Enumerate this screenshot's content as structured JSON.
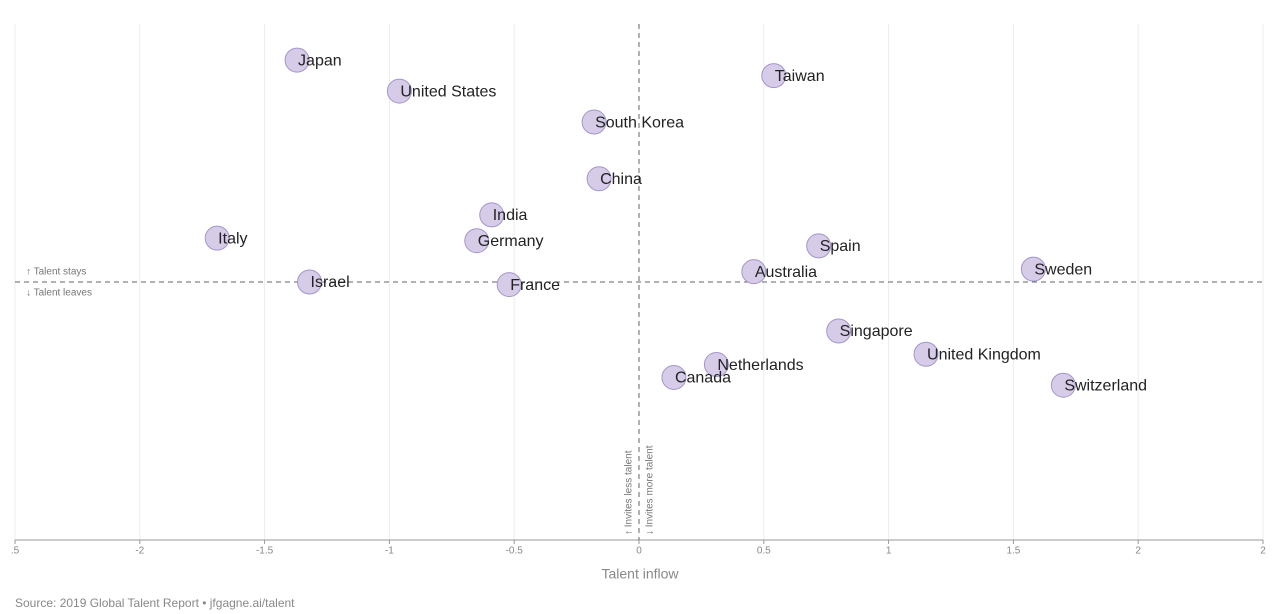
{
  "chart_data": {
    "type": "scatter",
    "x_label": "Talent inflow",
    "source": "Source: 2019 Global Talent Report • jfgagne.ai/talent",
    "annotations": [
      "↑ Talent stays",
      "↓ Talent leaves",
      "↑ Invites less talent",
      "↓ Invites more talent"
    ],
    "color": "#d6cce8",
    "grid": true,
    "xlim": [
      -2.5,
      2.5
    ],
    "xticks": [
      {
        "value": -2.5,
        "label": ".5"
      },
      -2,
      -1.5,
      -1,
      -0.5,
      0,
      0.5,
      1,
      1.5,
      2,
      {
        "value": 2.5,
        "label": "2"
      }
    ],
    "ylim": [
      -1,
      1
    ],
    "series": [
      {
        "name": "Countries",
        "labels": [
          "Japan",
          "United States",
          "South Korea",
          "Taiwan",
          "China",
          "India",
          "Italy",
          "Germany",
          "Spain",
          "Australia",
          "Sweden",
          "Israel",
          "France",
          "Singapore",
          "United Kingdom",
          "Netherlands",
          "Canada",
          "Switzerland"
        ],
        "x": [
          -1.37,
          -0.96,
          -0.18,
          0.54,
          -0.16,
          -0.59,
          -1.69,
          -0.65,
          0.72,
          0.46,
          1.58,
          -1.32,
          -0.52,
          0.8,
          1.15,
          0.31,
          0.14,
          1.7
        ],
        "values": [
          0.86,
          0.74,
          0.62,
          0.8,
          0.4,
          0.26,
          0.17,
          0.16,
          0.14,
          0.04,
          0.05,
          0,
          -0.01,
          -0.19,
          -0.28,
          -0.32,
          -0.37,
          -0.4
        ]
      }
    ]
  }
}
